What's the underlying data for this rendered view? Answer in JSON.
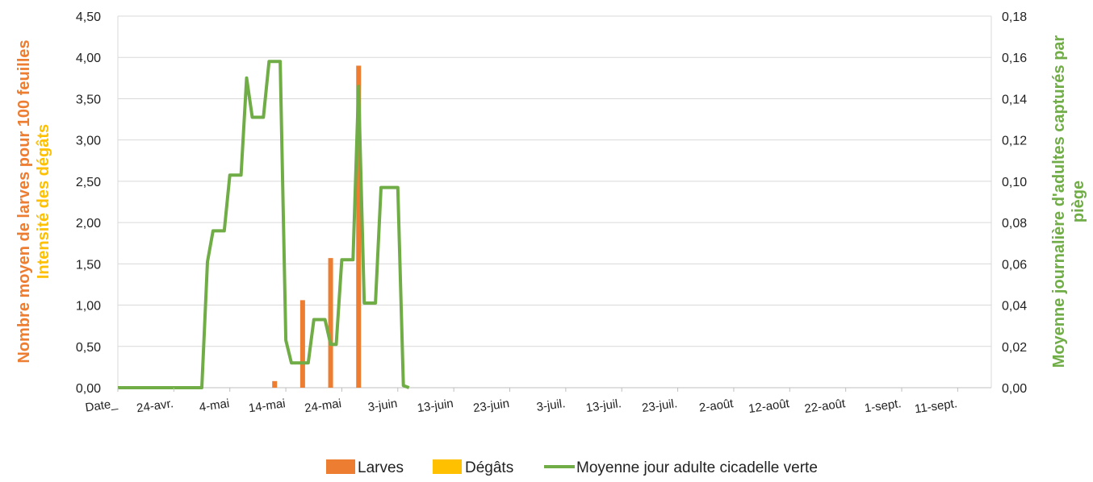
{
  "chart_data": {
    "type": "bar",
    "x_categories": [
      "Date_",
      "24-avr.",
      "4-mai",
      "14-mai",
      "24-mai",
      "3-juin",
      "13-juin",
      "23-juin",
      "3-juil.",
      "13-juil.",
      "23-juil.",
      "2-août",
      "12-août",
      "22-août",
      "1-sept.",
      "11-sept."
    ],
    "y_left": {
      "labels": [
        "Nombre moyen de larves pour 100 feuilles",
        "Intensité des dégâts"
      ],
      "min": 0,
      "max": 4.5,
      "step": 0.5,
      "ticks": [
        "0,00",
        "0,50",
        "1,00",
        "1,50",
        "2,00",
        "2,50",
        "3,00",
        "3,50",
        "4,00",
        "4,50"
      ]
    },
    "y_right": {
      "labels": [
        "Moyenne journalière d'adultes capturés par",
        "piège"
      ],
      "min": 0,
      "max": 0.18,
      "step": 0.02,
      "ticks": [
        "0,00",
        "0,02",
        "0,04",
        "0,06",
        "0,08",
        "0,10",
        "0,12",
        "0,14",
        "0,16",
        "0,18"
      ]
    },
    "colors": {
      "larves": "#ED7D31",
      "degats": "#FFC000",
      "adultes": "#70AD47",
      "grid": "#D9D9D9",
      "axis_left": "#ED7D31",
      "axis_left_2": "#FFC000",
      "axis_right": "#70AD47"
    },
    "legend": [
      "Larves",
      "Dégâts",
      "Moyenne jour adulte cicadelle verte"
    ],
    "legend_position": "bottom",
    "series": [
      {
        "name": "Larves",
        "type": "bar",
        "axis": "left",
        "points": [
          {
            "x": "12-mai",
            "y": 0.08
          },
          {
            "x": "17-mai",
            "y": 1.06
          },
          {
            "x": "22-mai",
            "y": 1.57
          },
          {
            "x": "27-mai",
            "y": 3.9
          }
        ]
      },
      {
        "name": "Dégâts",
        "type": "bar",
        "axis": "left",
        "points": []
      },
      {
        "name": "Moyenne jour adulte cicadelle verte",
        "type": "line",
        "axis": "right",
        "points": [
          {
            "x": "Date_",
            "y": 0
          },
          {
            "x": "22-avr.",
            "y": 0
          },
          {
            "x": "24-avr.",
            "y": 0
          },
          {
            "x": "26-avr.",
            "y": 0
          },
          {
            "x": "29-avr.",
            "y": 0
          },
          {
            "x": "30-avr.",
            "y": 0.061
          },
          {
            "x": "1-mai",
            "y": 0.076
          },
          {
            "x": "3-mai",
            "y": 0.076
          },
          {
            "x": "4-mai",
            "y": 0.103
          },
          {
            "x": "6-mai",
            "y": 0.103
          },
          {
            "x": "7-mai",
            "y": 0.15
          },
          {
            "x": "8-mai",
            "y": 0.131
          },
          {
            "x": "10-mai",
            "y": 0.131
          },
          {
            "x": "11-mai",
            "y": 0.158
          },
          {
            "x": "13-mai",
            "y": 0.158
          },
          {
            "x": "14-mai",
            "y": 0.023
          },
          {
            "x": "15-mai",
            "y": 0.012
          },
          {
            "x": "18-mai",
            "y": 0.012
          },
          {
            "x": "19-mai",
            "y": 0.033
          },
          {
            "x": "21-mai",
            "y": 0.033
          },
          {
            "x": "22-mai",
            "y": 0.021
          },
          {
            "x": "23-mai",
            "y": 0.021
          },
          {
            "x": "24-mai",
            "y": 0.062
          },
          {
            "x": "26-mai",
            "y": 0.062
          },
          {
            "x": "27-mai",
            "y": 0.146
          },
          {
            "x": "28-mai",
            "y": 0.041
          },
          {
            "x": "30-mai",
            "y": 0.041
          },
          {
            "x": "31-mai",
            "y": 0.097
          },
          {
            "x": "3-juin",
            "y": 0.097
          },
          {
            "x": "4-juin",
            "y": 0.001
          },
          {
            "x": "5-juin",
            "y": 0
          }
        ]
      }
    ]
  }
}
